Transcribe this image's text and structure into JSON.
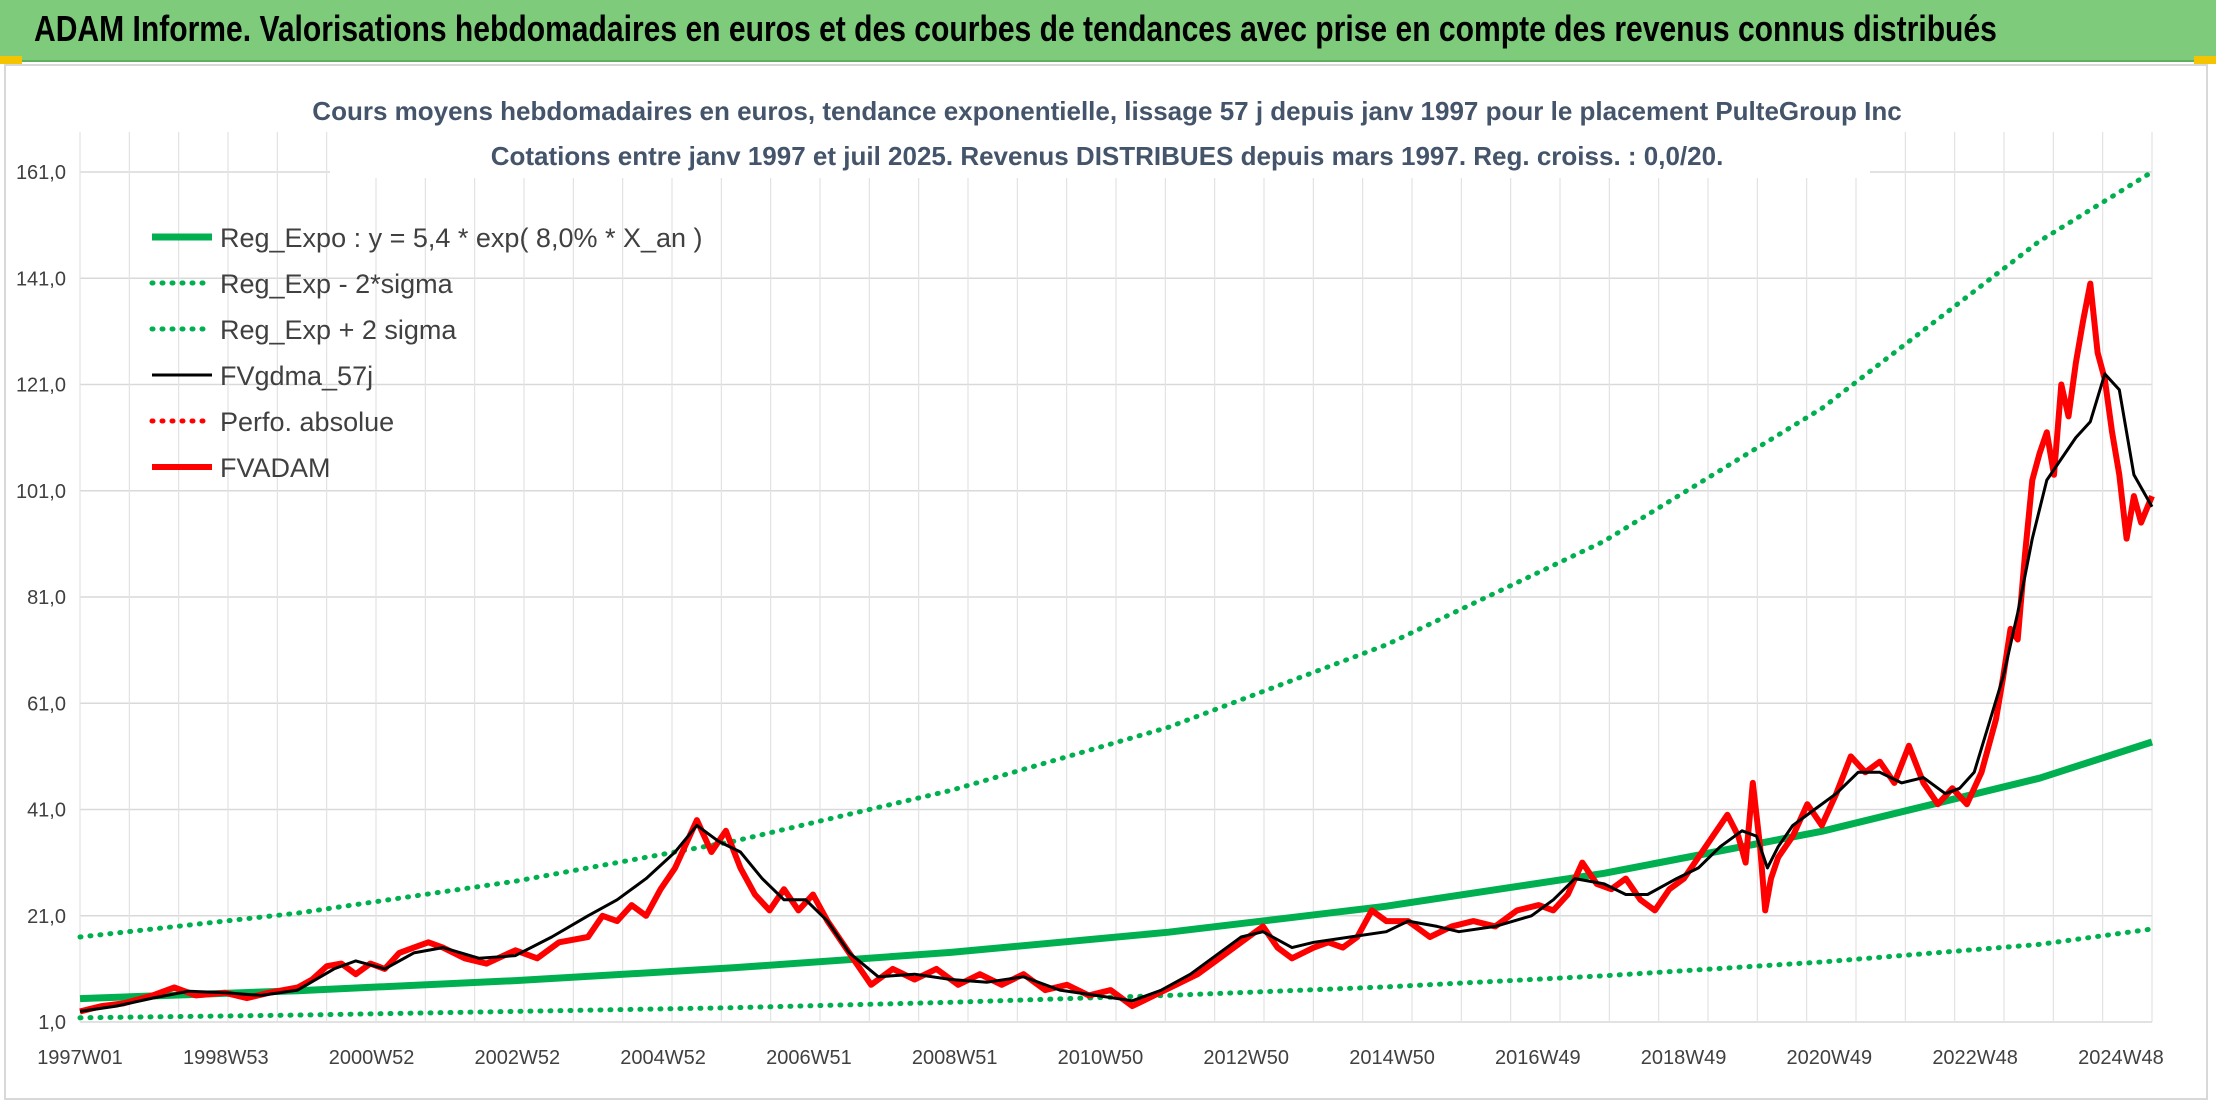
{
  "banner": {
    "title": "ADAM Informe. Valorisations hebdomadaires en euros et des courbes de tendances avec prise en compte des revenus connus distribués"
  },
  "chart_data": {
    "type": "line",
    "title": "Cours moyens hebdomadaires en euros, tendance exponentielle, lissage 57 j depuis janv 1997 pour le placement PulteGroup Inc",
    "subtitle": "Cotations entre janv 1997 et juil 2025. Revenus DISTRIBUES depuis mars 1997. Reg. croiss. : 0,0/20.",
    "xlabel": "",
    "ylabel": "",
    "ylim": [
      1.0,
      161.0
    ],
    "yticks": [
      "1,0",
      "21,0",
      "41,0",
      "61,0",
      "81,0",
      "101,0",
      "121,0",
      "141,0",
      "161,0"
    ],
    "xticks": [
      "1997W01",
      "1998W53",
      "2000W52",
      "2002W52",
      "2004W52",
      "2006W51",
      "2008W51",
      "2010W50",
      "2012W50",
      "2014W50",
      "2016W49",
      "2018W49",
      "2020W49",
      "2022W48",
      "2024W48"
    ],
    "x_range_years": [
      1997.0,
      2025.55
    ],
    "grid": true,
    "legend_position": "top-left",
    "colors": {
      "green": "#00b050",
      "black": "#000000",
      "red": "#ff0000"
    },
    "series": [
      {
        "name": "Reg_Expo : y = 5,4 * exp( 8,0% *  X_an )",
        "style": "solid",
        "color": "#00b050",
        "x": [
          1997,
          2000,
          2003,
          2006,
          2009,
          2012,
          2015,
          2018,
          2021,
          2024,
          2025.55
        ],
        "y": [
          5.4,
          6.9,
          8.8,
          11.2,
          14.1,
          17.9,
          22.8,
          29.0,
          36.9,
          46.9,
          53.7
        ]
      },
      {
        "name": "Reg_Exp - 2*sigma",
        "style": "dotted",
        "color": "#00b050",
        "x": [
          1997,
          2000,
          2003,
          2006,
          2009,
          2012,
          2015,
          2018,
          2021,
          2024,
          2025.55
        ],
        "y": [
          1.8,
          2.3,
          3.0,
          3.7,
          4.7,
          6.0,
          7.6,
          9.7,
          12.3,
          15.6,
          18.5
        ]
      },
      {
        "name": "Reg_Exp + 2 sigma",
        "style": "dotted",
        "color": "#00b050",
        "x": [
          1997,
          2000,
          2003,
          2006,
          2009,
          2012,
          2015,
          2018,
          2021,
          2024,
          2025.55
        ],
        "y": [
          17.0,
          21.5,
          27.5,
          35.0,
          44.6,
          56.5,
          72.0,
          91.5,
          116.5,
          148.0,
          161.0
        ]
      },
      {
        "name": "FVgdma_57j",
        "style": "solid",
        "color": "#000000",
        "x": [
          1997.0,
          1997.5,
          1998.0,
          1998.5,
          1999.0,
          1999.5,
          2000.0,
          2000.5,
          2000.8,
          2001.2,
          2001.6,
          2002.0,
          2002.5,
          2003.0,
          2003.5,
          2004.0,
          2004.4,
          2004.8,
          2005.2,
          2005.5,
          2005.8,
          2006.1,
          2006.4,
          2006.7,
          2007.0,
          2007.3,
          2007.6,
          2008.0,
          2008.5,
          2009.0,
          2009.5,
          2010.0,
          2010.5,
          2011.0,
          2011.5,
          2011.9,
          2012.3,
          2012.7,
          2013.0,
          2013.3,
          2013.7,
          2014.0,
          2014.5,
          2015.0,
          2015.3,
          2015.7,
          2016.0,
          2016.5,
          2017.0,
          2017.3,
          2017.6,
          2018.0,
          2018.3,
          2018.6,
          2019.0,
          2019.3,
          2019.6,
          2019.9,
          2020.1,
          2020.25,
          2020.4,
          2020.6,
          2020.9,
          2021.2,
          2021.5,
          2021.8,
          2022.1,
          2022.4,
          2022.7,
          2022.9,
          2023.1,
          2023.3,
          2023.5,
          2023.7,
          2023.9,
          2024.1,
          2024.3,
          2024.5,
          2024.7,
          2024.9,
          2025.1,
          2025.3,
          2025.55
        ],
        "y": [
          3.0,
          4.0,
          5.5,
          6.8,
          6.5,
          6.0,
          7.0,
          11.0,
          12.5,
          11.0,
          14.0,
          15.0,
          13.0,
          13.5,
          17.0,
          21.0,
          24.0,
          28.0,
          33.0,
          38.0,
          35.0,
          33.0,
          28.0,
          24.0,
          24.0,
          20.0,
          14.0,
          9.5,
          10.0,
          9.0,
          8.5,
          9.5,
          7.0,
          6.0,
          5.0,
          7.0,
          10.0,
          14.0,
          17.0,
          18.0,
          15.0,
          16.0,
          17.0,
          18.0,
          20.0,
          19.0,
          18.0,
          19.0,
          21.0,
          24.0,
          28.0,
          27.0,
          25.0,
          25.0,
          28.0,
          30.0,
          34.0,
          37.0,
          36.0,
          30.0,
          34.0,
          38.0,
          41.0,
          44.0,
          48.0,
          48.0,
          46.0,
          47.0,
          44.0,
          45.0,
          48.0,
          57.0,
          66.0,
          78.0,
          92.0,
          103.0,
          107.0,
          111.0,
          114.0,
          123.0,
          120.0,
          104.0,
          98.0
        ]
      },
      {
        "name": "Perfo. absolue",
        "style": "dotted",
        "color": "#ff0000",
        "x": [],
        "y": []
      },
      {
        "name": "FVADAM",
        "style": "solid",
        "color": "#ff0000",
        "x": [
          1997.0,
          1997.3,
          1997.6,
          1998.0,
          1998.3,
          1998.6,
          1999.0,
          1999.3,
          1999.6,
          2000.0,
          2000.2,
          2000.4,
          2000.6,
          2000.8,
          2001.0,
          2001.2,
          2001.4,
          2001.6,
          2001.8,
          2002.0,
          2002.3,
          2002.6,
          2003.0,
          2003.3,
          2003.6,
          2004.0,
          2004.2,
          2004.4,
          2004.6,
          2004.8,
          2005.0,
          2005.2,
          2005.4,
          2005.5,
          2005.7,
          2005.9,
          2006.1,
          2006.3,
          2006.5,
          2006.7,
          2006.9,
          2007.1,
          2007.3,
          2007.5,
          2007.7,
          2007.9,
          2008.2,
          2008.5,
          2008.8,
          2009.1,
          2009.4,
          2009.7,
          2010.0,
          2010.3,
          2010.6,
          2010.9,
          2011.2,
          2011.5,
          2011.8,
          2012.1,
          2012.4,
          2012.7,
          2012.9,
          2013.1,
          2013.3,
          2013.5,
          2013.7,
          2014.0,
          2014.2,
          2014.4,
          2014.6,
          2014.8,
          2015.0,
          2015.3,
          2015.6,
          2015.9,
          2016.2,
          2016.5,
          2016.8,
          2017.1,
          2017.3,
          2017.5,
          2017.7,
          2017.9,
          2018.1,
          2018.3,
          2018.5,
          2018.7,
          2018.9,
          2019.1,
          2019.3,
          2019.5,
          2019.7,
          2019.85,
          2019.95,
          2020.05,
          2020.15,
          2020.22,
          2020.3,
          2020.4,
          2020.6,
          2020.8,
          2021.0,
          2021.2,
          2021.4,
          2021.6,
          2021.8,
          2022.0,
          2022.2,
          2022.4,
          2022.6,
          2022.8,
          2023.0,
          2023.2,
          2023.4,
          2023.5,
          2023.6,
          2023.7,
          2023.8,
          2023.9,
          2024.0,
          2024.1,
          2024.2,
          2024.3,
          2024.4,
          2024.5,
          2024.6,
          2024.7,
          2024.8,
          2024.9,
          2025.0,
          2025.1,
          2025.2,
          2025.3,
          2025.4,
          2025.55
        ],
        "y": [
          3.0,
          4.0,
          4.5,
          6.0,
          7.5,
          6.0,
          6.5,
          5.5,
          6.5,
          7.5,
          9.0,
          11.5,
          12.0,
          10.0,
          12.0,
          11.0,
          14.0,
          15.0,
          16.0,
          15.0,
          13.0,
          12.0,
          14.5,
          13.0,
          16.0,
          17.0,
          21.0,
          20.0,
          23.0,
          21.0,
          26.0,
          30.0,
          36.0,
          39.0,
          33.0,
          37.0,
          30.0,
          25.0,
          22.0,
          26.0,
          22.0,
          25.0,
          20.0,
          16.0,
          12.0,
          8.0,
          11.0,
          9.0,
          11.0,
          8.0,
          10.0,
          8.0,
          10.0,
          7.0,
          8.0,
          6.0,
          7.0,
          4.0,
          6.0,
          8.0,
          10.0,
          13.0,
          15.0,
          17.0,
          19.0,
          15.0,
          13.0,
          15.0,
          16.0,
          15.0,
          17.0,
          22.0,
          20.0,
          20.0,
          17.0,
          19.0,
          20.0,
          19.0,
          22.0,
          23.0,
          22.0,
          25.0,
          31.0,
          27.0,
          26.0,
          28.0,
          24.0,
          22.0,
          26.0,
          28.0,
          32.0,
          36.0,
          40.0,
          36.0,
          31.0,
          46.0,
          34.0,
          22.0,
          28.0,
          32.0,
          36.0,
          42.0,
          38.0,
          44.0,
          51.0,
          48.0,
          50.0,
          46.0,
          53.0,
          46.0,
          42.0,
          45.0,
          42.0,
          48.0,
          58.0,
          66.0,
          75.0,
          73.0,
          89.0,
          103.0,
          108.0,
          112.0,
          104.0,
          121.0,
          115.0,
          125.0,
          133.0,
          140.0,
          127.0,
          122.0,
          112.0,
          104.0,
          92.0,
          100.0,
          95.0,
          100.0
        ]
      }
    ]
  }
}
